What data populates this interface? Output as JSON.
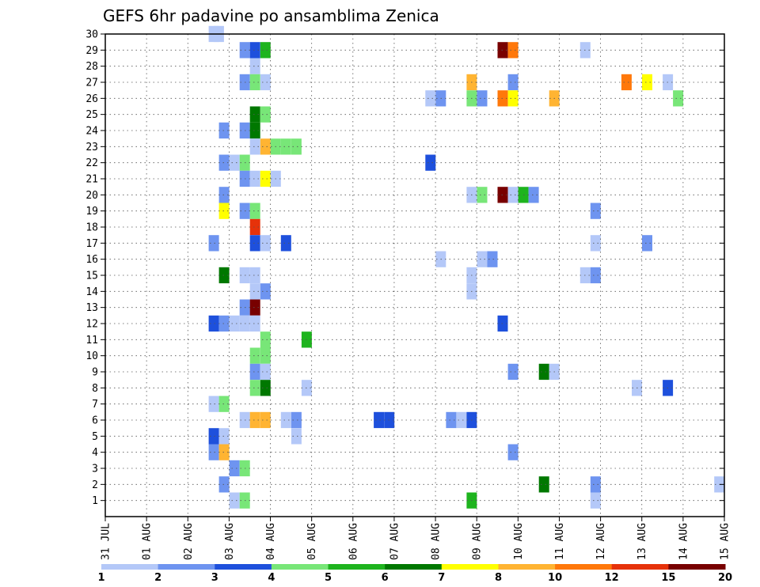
{
  "chart_data": {
    "type": "heatmap",
    "title": "GEFS 6hr padavine po ansamblima Zenica",
    "xlabel": "",
    "ylabel": "",
    "x_tick_labels": [
      "31 JUL",
      "01 AUG",
      "02 AUG",
      "03 AUG",
      "04 AUG",
      "05 AUG",
      "06 AUG",
      "07 AUG",
      "08 AUG",
      "09 AUG",
      "10 AUG",
      "11 AUG",
      "12 AUG",
      "13 AUG",
      "14 AUG",
      "15 AUG"
    ],
    "x_range_days": [
      0,
      15
    ],
    "y_tick_labels": [
      "1",
      "2",
      "3",
      "4",
      "5",
      "6",
      "7",
      "8",
      "9",
      "10",
      "11",
      "12",
      "13",
      "14",
      "15",
      "16",
      "17",
      "18",
      "19",
      "20",
      "21",
      "22",
      "23",
      "24",
      "25",
      "26",
      "27",
      "28",
      "29",
      "30"
    ],
    "y_range": [
      0,
      30
    ],
    "grid": true,
    "colorbar": {
      "colors": [
        "#b4c8f8",
        "#6e94f0",
        "#1e50dc",
        "#78e678",
        "#1eb41e",
        "#007800",
        "#ffff00",
        "#ffb432",
        "#ff780a",
        "#e6320a",
        "#780000"
      ],
      "labels": [
        "1",
        "2",
        "3",
        "4",
        "5",
        "6",
        "7",
        "8",
        "10",
        "12",
        "15",
        "20"
      ]
    },
    "cells": [
      [
        2.63,
        30,
        0
      ],
      [
        2.75,
        30,
        0
      ],
      [
        3.38,
        29,
        1
      ],
      [
        3.63,
        29,
        2
      ],
      [
        3.88,
        29,
        4
      ],
      [
        9.63,
        29,
        10
      ],
      [
        9.88,
        29,
        8
      ],
      [
        11.63,
        29,
        0
      ],
      [
        3.63,
        28,
        0
      ],
      [
        3.38,
        27,
        1
      ],
      [
        3.63,
        27,
        3
      ],
      [
        3.88,
        27,
        0
      ],
      [
        8.88,
        27,
        7
      ],
      [
        9.88,
        27,
        1
      ],
      [
        12.63,
        27,
        8
      ],
      [
        13.13,
        27,
        6
      ],
      [
        13.63,
        27,
        0
      ],
      [
        7.88,
        26,
        0
      ],
      [
        8.13,
        26,
        1
      ],
      [
        8.88,
        26,
        3
      ],
      [
        9.13,
        26,
        1
      ],
      [
        9.63,
        26,
        8
      ],
      [
        9.88,
        26,
        6
      ],
      [
        10.88,
        26,
        7
      ],
      [
        13.88,
        26,
        3
      ],
      [
        3.63,
        25,
        5
      ],
      [
        3.88,
        25,
        3
      ],
      [
        2.88,
        24,
        1
      ],
      [
        3.38,
        24,
        1
      ],
      [
        3.63,
        24,
        5
      ],
      [
        3.63,
        23,
        0
      ],
      [
        3.88,
        23,
        7
      ],
      [
        4.13,
        23,
        3
      ],
      [
        4.38,
        23,
        3
      ],
      [
        4.63,
        23,
        3
      ],
      [
        2.88,
        22,
        1
      ],
      [
        3.13,
        22,
        0
      ],
      [
        3.38,
        22,
        3
      ],
      [
        7.88,
        22,
        2
      ],
      [
        3.38,
        21,
        1
      ],
      [
        3.63,
        21,
        0
      ],
      [
        3.88,
        21,
        6
      ],
      [
        4.13,
        21,
        0
      ],
      [
        2.88,
        20,
        1
      ],
      [
        8.88,
        20,
        0
      ],
      [
        9.13,
        20,
        3
      ],
      [
        9.63,
        20,
        10
      ],
      [
        9.88,
        20,
        0
      ],
      [
        10.13,
        20,
        4
      ],
      [
        10.38,
        20,
        1
      ],
      [
        2.88,
        19,
        6
      ],
      [
        3.38,
        19,
        1
      ],
      [
        3.63,
        19,
        3
      ],
      [
        11.88,
        19,
        1
      ],
      [
        3.63,
        18,
        9
      ],
      [
        2.63,
        17,
        1
      ],
      [
        3.63,
        17,
        2
      ],
      [
        3.88,
        17,
        0
      ],
      [
        4.38,
        17,
        2
      ],
      [
        11.88,
        17,
        0
      ],
      [
        13.13,
        17,
        1
      ],
      [
        8.13,
        16,
        0
      ],
      [
        9.13,
        16,
        0
      ],
      [
        9.38,
        16,
        1
      ],
      [
        2.88,
        15,
        5
      ],
      [
        3.38,
        15,
        0
      ],
      [
        3.63,
        15,
        0
      ],
      [
        8.88,
        15,
        0
      ],
      [
        11.63,
        15,
        0
      ],
      [
        11.88,
        15,
        1
      ],
      [
        3.63,
        14,
        0
      ],
      [
        3.88,
        14,
        1
      ],
      [
        8.88,
        14,
        0
      ],
      [
        3.38,
        13,
        1
      ],
      [
        3.63,
        13,
        10
      ],
      [
        2.63,
        12,
        2
      ],
      [
        2.88,
        12,
        1
      ],
      [
        3.13,
        12,
        0
      ],
      [
        3.38,
        12,
        0
      ],
      [
        3.63,
        12,
        0
      ],
      [
        9.63,
        12,
        2
      ],
      [
        3.88,
        11,
        3
      ],
      [
        4.88,
        11,
        4
      ],
      [
        3.63,
        10,
        3
      ],
      [
        3.88,
        10,
        3
      ],
      [
        3.63,
        9,
        1
      ],
      [
        3.88,
        9,
        0
      ],
      [
        9.88,
        9,
        1
      ],
      [
        10.63,
        9,
        5
      ],
      [
        10.88,
        9,
        0
      ],
      [
        3.63,
        8,
        3
      ],
      [
        3.88,
        8,
        5
      ],
      [
        4.88,
        8,
        0
      ],
      [
        12.88,
        8,
        0
      ],
      [
        13.63,
        8,
        2
      ],
      [
        2.63,
        7,
        0
      ],
      [
        2.88,
        7,
        3
      ],
      [
        3.38,
        6,
        0
      ],
      [
        3.63,
        6,
        7
      ],
      [
        3.88,
        6,
        7
      ],
      [
        4.38,
        6,
        0
      ],
      [
        4.63,
        6,
        1
      ],
      [
        6.63,
        6,
        2
      ],
      [
        6.88,
        6,
        2
      ],
      [
        8.38,
        6,
        1
      ],
      [
        8.63,
        6,
        0
      ],
      [
        8.88,
        6,
        2
      ],
      [
        2.63,
        5,
        2
      ],
      [
        2.88,
        5,
        0
      ],
      [
        4.63,
        5,
        0
      ],
      [
        2.63,
        4,
        1
      ],
      [
        2.88,
        4,
        7
      ],
      [
        9.88,
        4,
        1
      ],
      [
        3.13,
        3,
        1
      ],
      [
        3.38,
        3,
        3
      ],
      [
        2.88,
        2,
        1
      ],
      [
        10.63,
        2,
        5
      ],
      [
        11.88,
        2,
        1
      ],
      [
        14.88,
        2,
        0
      ],
      [
        3.13,
        1,
        0
      ],
      [
        3.38,
        1,
        3
      ],
      [
        8.88,
        1,
        4
      ],
      [
        11.88,
        1,
        0
      ]
    ]
  }
}
